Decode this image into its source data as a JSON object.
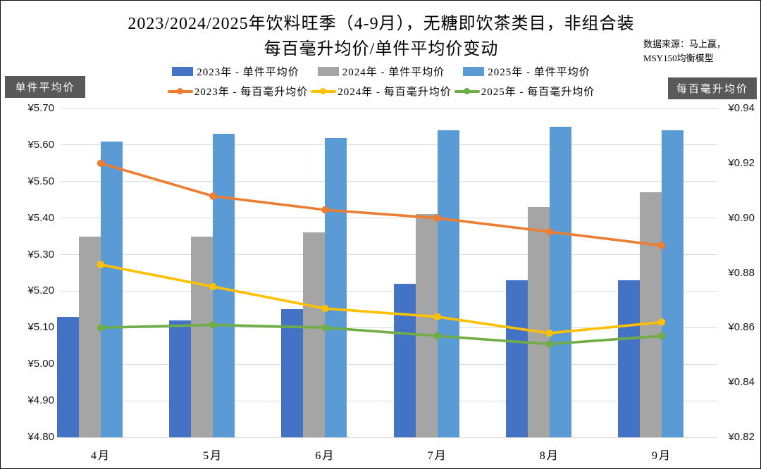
{
  "title": {
    "line1": "2023/2024/2025年饮料旺季（4-9月），无糖即饮茶类目，非组合装",
    "line2": "每百毫升均价/单件平均价变动"
  },
  "source": {
    "line1": "数据来源：马上赢，",
    "line2": "MSY150均衡模型"
  },
  "axes": {
    "left_badge": "单件平均价",
    "right_badge": "每百毫升均价"
  },
  "colors": {
    "bar_2023": "#4472C4",
    "bar_2024": "#A5A5A5",
    "bar_2025": "#5B9BD5",
    "line_2023": "#ED7D31",
    "line_2024": "#FFC000",
    "line_2025": "#70AD47",
    "gridline": "#D9D9D9",
    "badge_bg": "#595959"
  },
  "chart_data": {
    "type": "bar",
    "subtype": "grouped bars + lines, dual y-axis",
    "title": "2023/2024/2025年饮料旺季（4-9月），无糖即饮茶类目，非组合装 每百毫升均价/单件平均价变动",
    "categories": [
      "4月",
      "5月",
      "6月",
      "7月",
      "8月",
      "9月"
    ],
    "bar_series": [
      {
        "name": "2023年 - 单件平均价",
        "color": "#4472C4",
        "axis": "left",
        "values": [
          5.13,
          5.12,
          5.15,
          5.22,
          5.23,
          5.23
        ]
      },
      {
        "name": "2024年 - 单件平均价",
        "color": "#A5A5A5",
        "axis": "left",
        "values": [
          5.35,
          5.35,
          5.36,
          5.41,
          5.43,
          5.47
        ]
      },
      {
        "name": "2025年 - 单件平均价",
        "color": "#5B9BD5",
        "axis": "left",
        "values": [
          5.61,
          5.63,
          5.62,
          5.64,
          5.65,
          5.64
        ]
      }
    ],
    "line_series": [
      {
        "name": "2023年 - 每百毫升均价",
        "color": "#ED7D31",
        "axis": "right",
        "values": [
          0.92,
          0.908,
          0.903,
          0.9,
          0.895,
          0.89
        ]
      },
      {
        "name": "2024年 - 每百毫升均价",
        "color": "#FFC000",
        "axis": "right",
        "values": [
          0.883,
          0.875,
          0.867,
          0.864,
          0.858,
          0.862
        ]
      },
      {
        "name": "2025年 - 每百毫升均价",
        "color": "#70AD47",
        "axis": "right",
        "values": [
          0.86,
          0.861,
          0.86,
          0.857,
          0.854,
          0.857
        ]
      }
    ],
    "left_axis": {
      "label": "单件平均价",
      "min": 4.8,
      "max": 5.7,
      "step": 0.1,
      "tick_labels": [
        "¥4.80",
        "¥4.90",
        "¥5.00",
        "¥5.10",
        "¥5.20",
        "¥5.30",
        "¥5.40",
        "¥5.50",
        "¥5.60",
        "¥5.70"
      ]
    },
    "right_axis": {
      "label": "每百毫升均价",
      "min": 0.82,
      "max": 0.94,
      "step": 0.02,
      "tick_labels": [
        "¥0.82",
        "¥0.84",
        "¥0.86",
        "¥0.88",
        "¥0.90",
        "¥0.92",
        "¥0.94"
      ]
    },
    "grid": true,
    "legend_position": "top, two rows (bars row then lines row)"
  }
}
